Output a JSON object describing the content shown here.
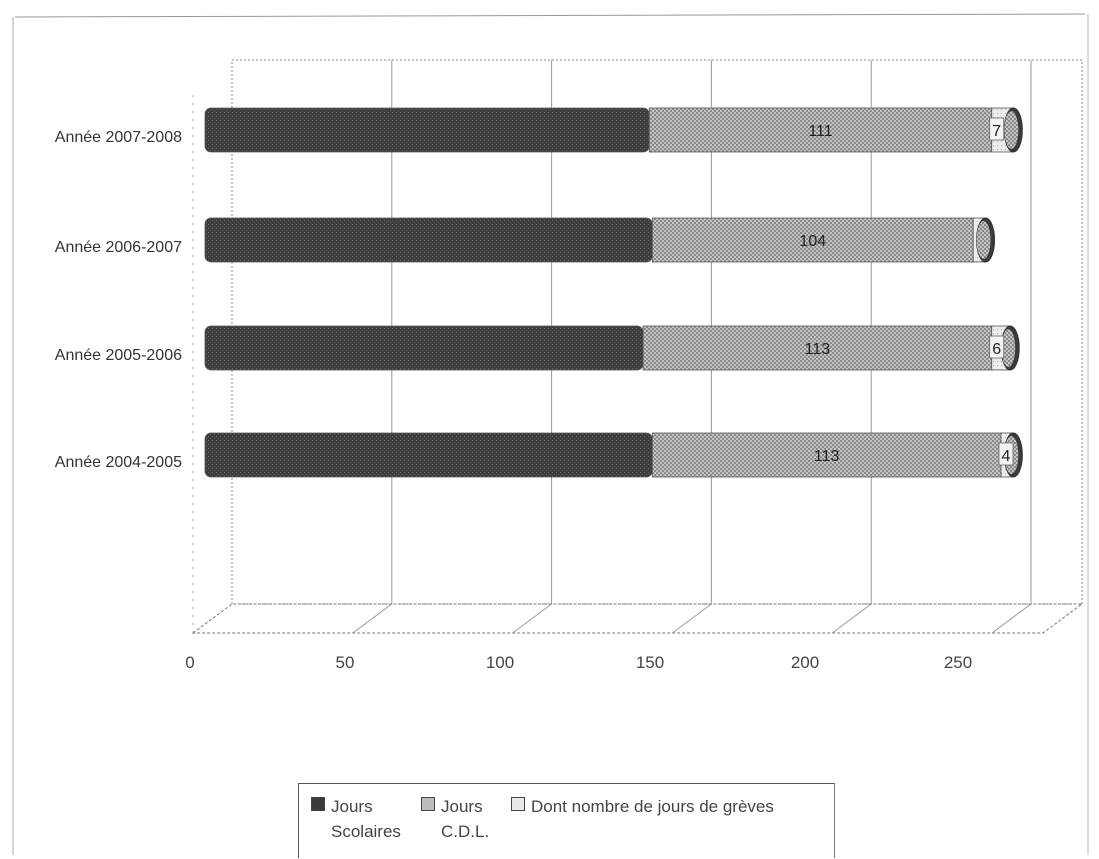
{
  "chart_data": {
    "type": "bar",
    "orientation": "horizontal",
    "stacked": true,
    "three_d": true,
    "categories": [
      "Année 2007-2008",
      "Année 2006-2007",
      "Année 2005-2006",
      "Année 2004-2005"
    ],
    "series": [
      {
        "name": "Jours Scolaires",
        "values": [
          144,
          145,
          142,
          145
        ],
        "color": "#3a3a3a"
      },
      {
        "name": "Jours C.D.L.",
        "values": [
          111,
          104,
          113,
          113
        ],
        "color": "#bcbcbc"
      },
      {
        "name": "Dont nombre de jours de grèves",
        "values": [
          7,
          4,
          6,
          4
        ],
        "color": "#e9e9e9"
      }
    ],
    "data_labels": [
      {
        "category": "Année 2007-2008",
        "labels": [
          "111",
          "7"
        ]
      },
      {
        "category": "Année 2006-2007",
        "labels": [
          "104",
          ""
        ]
      },
      {
        "category": "Année 2005-2006",
        "labels": [
          "113",
          "6"
        ]
      },
      {
        "category": "Année 2004-2005",
        "labels": [
          "113",
          "4"
        ]
      }
    ],
    "x_ticks": [
      0,
      50,
      100,
      150,
      200,
      250
    ],
    "x_tick_labels": [
      "0",
      "50",
      "100",
      "150",
      "200",
      "250"
    ],
    "xlim": [
      0,
      250
    ],
    "grid": true,
    "legend_position": "bottom"
  },
  "legend": {
    "items": [
      {
        "line1": "Jours",
        "line2": "Scolaires",
        "color": "#3a3a3a"
      },
      {
        "line1": "Jours",
        "line2": "C.D.L.",
        "color": "#bcbcbc"
      },
      {
        "line1": "Dont nombre de jours de grèves",
        "line2": "",
        "color": "#e9e9e9"
      }
    ]
  }
}
